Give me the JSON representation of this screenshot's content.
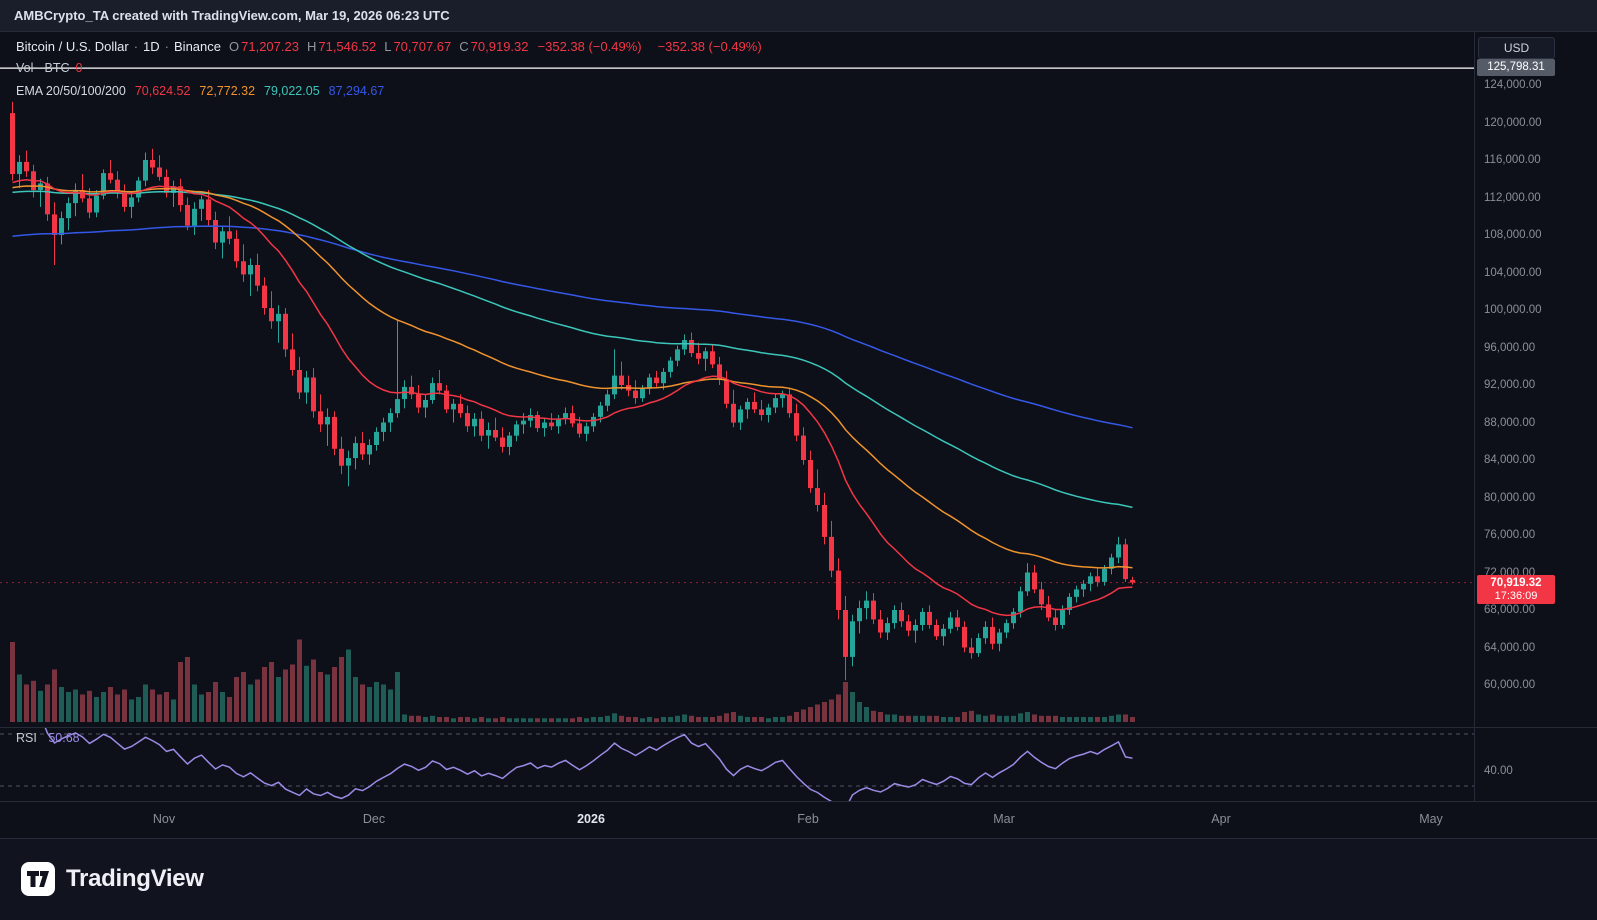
{
  "header": {
    "title": "AMBCrypto_TA created with TradingView.com, Mar 19, 2026 06:23 UTC"
  },
  "toolbar": {
    "currency_label": "USD"
  },
  "legend": {
    "symbol": "Bitcoin / U.S. Dollar",
    "sep": "·",
    "interval": "1D",
    "exchange": "Binance",
    "ohlc": [
      {
        "key": "O",
        "value": "71,207.23"
      },
      {
        "key": "H",
        "value": "71,546.52"
      },
      {
        "key": "L",
        "value": "70,707.67"
      },
      {
        "key": "C",
        "value": "70,919.32"
      }
    ],
    "change": "−352.38 (−0.49%)",
    "change_secondary": "−352.38 (−0.49%)",
    "volume_label": "Vol · BTC",
    "volume_value": "0",
    "ema_label": "EMA 20/50/100/200",
    "ema_values": [
      {
        "text": "70,624.52",
        "color": "#f23645"
      },
      {
        "text": "72,772.32",
        "color": "#f0932e"
      },
      {
        "text": "79,022.05",
        "color": "#3cc6ba"
      },
      {
        "text": "87,294.67",
        "color": "#3558e8"
      }
    ]
  },
  "price_axis": {
    "ticks": [
      {
        "value": 124000,
        "label": "124,000.00"
      },
      {
        "value": 120000,
        "label": "120,000.00"
      },
      {
        "value": 116000,
        "label": "116,000.00"
      },
      {
        "value": 112000,
        "label": "112,000.00"
      },
      {
        "value": 108000,
        "label": "108,000.00"
      },
      {
        "value": 104000,
        "label": "104,000.00"
      },
      {
        "value": 100000,
        "label": "100,000.00"
      },
      {
        "value": 96000,
        "label": "96,000.00"
      },
      {
        "value": 92000,
        "label": "92,000.00"
      },
      {
        "value": 88000,
        "label": "88,000.00"
      },
      {
        "value": 84000,
        "label": "84,000.00"
      },
      {
        "value": 80000,
        "label": "80,000.00"
      },
      {
        "value": 76000,
        "label": "76,000.00"
      },
      {
        "value": 72000,
        "label": "72,000.00"
      },
      {
        "value": 68000,
        "label": "68,000.00"
      },
      {
        "value": 64000,
        "label": "64,000.00"
      },
      {
        "value": 60000,
        "label": "60,000.00"
      }
    ],
    "line_label": "125,798.31",
    "price_badge": {
      "price": "70,919.32",
      "countdown": "17:36:09"
    }
  },
  "time_axis": {
    "labels": [
      {
        "text": "Nov",
        "day": 22,
        "emphasis": false
      },
      {
        "text": "Dec",
        "day": 52,
        "emphasis": false
      },
      {
        "text": "2026",
        "day": 83,
        "emphasis": true
      },
      {
        "text": "Feb",
        "day": 114,
        "emphasis": false
      },
      {
        "text": "Mar",
        "day": 142,
        "emphasis": false
      },
      {
        "text": "Apr",
        "day": 173,
        "emphasis": false
      },
      {
        "text": "May",
        "day": 203,
        "emphasis": false
      }
    ]
  },
  "rsi_pane": {
    "label": "RSI",
    "value": "50.68",
    "axis_label": "40.00",
    "axis_value": 40,
    "upper_band": 70,
    "lower_band": 30,
    "period": 14,
    "color": "#9b8be6"
  },
  "footer": {
    "brand": "TradingView"
  },
  "chart_data": {
    "type": "candlestick",
    "title": "Bitcoin / U.S. Dollar, 1D, Binance",
    "price_unit": "thousand USD per candle value, volume in K BTC",
    "candle_format": [
      "open",
      "high",
      "low",
      "close",
      "volume"
    ],
    "ylim": [
      58500,
      126500
    ],
    "white_line_price": 125798.31,
    "current_price": 70919.32,
    "colors": {
      "up": "#26a69a",
      "down": "#f23645",
      "vol_up": "#1f5c55",
      "vol_down": "#78333e",
      "line": "#ffffff"
    },
    "emas": [
      {
        "period": 20,
        "color": "#f23645",
        "seed": 113.5
      },
      {
        "period": 50,
        "color": "#f0932e",
        "seed": 113.0
      },
      {
        "period": 100,
        "color": "#3cc6ba",
        "seed": 112.5
      },
      {
        "period": 200,
        "color": "#3558e8",
        "seed": 107.8
      }
    ],
    "candles": [
      [
        121.0,
        122.2,
        113.8,
        114.5,
        64
      ],
      [
        114.5,
        116.5,
        113.0,
        115.8,
        38
      ],
      [
        115.8,
        117.0,
        114.2,
        114.8,
        30
      ],
      [
        114.8,
        115.5,
        112.0,
        112.8,
        33
      ],
      [
        112.8,
        114.0,
        111.0,
        113.5,
        25
      ],
      [
        113.5,
        114.2,
        109.5,
        110.2,
        30
      ],
      [
        110.2,
        111.5,
        104.8,
        108.0,
        42
      ],
      [
        108.0,
        110.5,
        107.0,
        109.8,
        28
      ],
      [
        109.8,
        112.0,
        108.5,
        111.4,
        24
      ],
      [
        111.4,
        113.5,
        110.0,
        112.8,
        26
      ],
      [
        112.8,
        114.5,
        111.5,
        111.9,
        22
      ],
      [
        111.9,
        113.0,
        109.8,
        110.4,
        25
      ],
      [
        110.4,
        112.8,
        109.9,
        112.2,
        20
      ],
      [
        112.2,
        115.0,
        111.8,
        114.6,
        24
      ],
      [
        114.6,
        116.0,
        113.5,
        113.9,
        28
      ],
      [
        113.9,
        114.8,
        111.9,
        112.5,
        22
      ],
      [
        112.5,
        113.4,
        110.5,
        111.0,
        26
      ],
      [
        111.0,
        112.5,
        109.8,
        112.0,
        18
      ],
      [
        112.0,
        114.2,
        111.5,
        113.8,
        20
      ],
      [
        113.8,
        116.8,
        113.2,
        116.0,
        30
      ],
      [
        116.0,
        117.2,
        114.5,
        115.2,
        26
      ],
      [
        115.2,
        116.5,
        113.8,
        114.2,
        22
      ],
      [
        114.2,
        115.0,
        112.0,
        112.5,
        24
      ],
      [
        112.5,
        113.8,
        111.0,
        113.2,
        18
      ],
      [
        113.2,
        114.0,
        110.5,
        111.2,
        48
      ],
      [
        111.2,
        112.0,
        108.5,
        109.0,
        52
      ],
      [
        109.0,
        111.5,
        108.0,
        110.8,
        30
      ],
      [
        110.8,
        112.2,
        109.5,
        111.8,
        22
      ],
      [
        111.8,
        112.8,
        109.0,
        109.6,
        24
      ],
      [
        109.6,
        110.5,
        106.5,
        107.2,
        32
      ],
      [
        107.2,
        109.0,
        105.5,
        108.4,
        24
      ],
      [
        108.4,
        110.0,
        107.0,
        107.6,
        20
      ],
      [
        107.6,
        108.5,
        104.5,
        105.2,
        36
      ],
      [
        105.2,
        107.0,
        103.0,
        103.8,
        40
      ],
      [
        103.8,
        105.5,
        101.5,
        104.8,
        30
      ],
      [
        104.8,
        106.0,
        102.0,
        102.6,
        34
      ],
      [
        102.6,
        103.5,
        99.5,
        100.2,
        44
      ],
      [
        100.2,
        102.0,
        98.0,
        98.8,
        48
      ],
      [
        98.8,
        100.5,
        96.5,
        99.6,
        36
      ],
      [
        99.6,
        100.2,
        95.0,
        95.8,
        42
      ],
      [
        95.8,
        97.5,
        93.0,
        93.6,
        46
      ],
      [
        93.6,
        95.0,
        90.5,
        91.2,
        66
      ],
      [
        91.2,
        93.5,
        90.0,
        92.8,
        45
      ],
      [
        92.8,
        93.8,
        88.5,
        89.2,
        50
      ],
      [
        89.2,
        91.0,
        87.0,
        87.8,
        40
      ],
      [
        87.8,
        89.5,
        85.5,
        88.6,
        38
      ],
      [
        88.6,
        89.2,
        84.5,
        85.2,
        44
      ],
      [
        85.2,
        86.5,
        82.5,
        83.4,
        52
      ],
      [
        83.4,
        85.0,
        81.2,
        84.2,
        58
      ],
      [
        84.2,
        86.5,
        83.0,
        85.8,
        36
      ],
      [
        85.8,
        87.0,
        84.0,
        84.6,
        30
      ],
      [
        84.6,
        86.2,
        83.5,
        85.6,
        28
      ],
      [
        85.6,
        87.5,
        85.0,
        87.0,
        32
      ],
      [
        87.0,
        88.5,
        86.0,
        88.0,
        30
      ],
      [
        88.0,
        89.5,
        87.0,
        89.0,
        26
      ],
      [
        89.0,
        98.9,
        88.5,
        90.5,
        40
      ],
      [
        90.5,
        92.5,
        89.5,
        91.8,
        6
      ],
      [
        91.8,
        93.0,
        90.5,
        91.0,
        5
      ],
      [
        91.0,
        92.0,
        89.0,
        89.6,
        5
      ],
      [
        89.6,
        91.0,
        88.5,
        90.4,
        4
      ],
      [
        90.4,
        92.8,
        90.0,
        92.2,
        5
      ],
      [
        92.2,
        93.6,
        91.0,
        91.4,
        4
      ],
      [
        91.4,
        92.0,
        89.0,
        89.4,
        4
      ],
      [
        89.4,
        90.5,
        88.0,
        90.0,
        3
      ],
      [
        90.0,
        91.0,
        88.5,
        89.0,
        4
      ],
      [
        89.0,
        89.8,
        87.0,
        87.6,
        4
      ],
      [
        87.6,
        89.0,
        86.5,
        88.4,
        3
      ],
      [
        88.4,
        89.2,
        86.0,
        86.6,
        4
      ],
      [
        86.6,
        88.0,
        85.2,
        87.2,
        3
      ],
      [
        87.2,
        88.5,
        86.0,
        86.4,
        3
      ],
      [
        86.4,
        87.5,
        84.8,
        85.4,
        4
      ],
      [
        85.4,
        87.0,
        84.5,
        86.6,
        3
      ],
      [
        86.6,
        88.2,
        86.0,
        87.8,
        3
      ],
      [
        87.8,
        89.0,
        86.8,
        88.2,
        3
      ],
      [
        88.2,
        89.5,
        87.5,
        88.8,
        3
      ],
      [
        88.8,
        89.2,
        87.0,
        87.4,
        3
      ],
      [
        87.4,
        88.5,
        86.5,
        88.0,
        3
      ],
      [
        88.0,
        89.0,
        87.2,
        87.6,
        3
      ],
      [
        87.6,
        88.8,
        86.8,
        88.4,
        3
      ],
      [
        88.4,
        89.6,
        87.8,
        89.0,
        3
      ],
      [
        89.0,
        89.8,
        87.5,
        87.9,
        3
      ],
      [
        87.9,
        88.6,
        86.4,
        86.8,
        4
      ],
      [
        86.8,
        88.0,
        86.0,
        87.6,
        3
      ],
      [
        87.6,
        89.0,
        87.0,
        88.6,
        4
      ],
      [
        88.6,
        90.2,
        88.0,
        89.8,
        4
      ],
      [
        89.8,
        91.5,
        89.2,
        91.0,
        5
      ],
      [
        91.0,
        95.8,
        90.5,
        93.0,
        7
      ],
      [
        93.0,
        94.5,
        91.5,
        92.0,
        5
      ],
      [
        92.0,
        93.0,
        90.8,
        91.4,
        4
      ],
      [
        91.4,
        92.5,
        90.0,
        90.6,
        4
      ],
      [
        90.6,
        92.0,
        90.2,
        91.6,
        3
      ],
      [
        91.6,
        93.2,
        91.0,
        92.8,
        4
      ],
      [
        92.8,
        93.5,
        91.8,
        92.2,
        3
      ],
      [
        92.2,
        93.8,
        91.5,
        93.4,
        4
      ],
      [
        93.4,
        95.0,
        92.8,
        94.6,
        4
      ],
      [
        94.6,
        96.2,
        94.0,
        95.8,
        5
      ],
      [
        95.8,
        97.4,
        95.2,
        96.8,
        6
      ],
      [
        96.8,
        97.6,
        95.0,
        95.4,
        5
      ],
      [
        95.4,
        96.5,
        94.2,
        94.8,
        4
      ],
      [
        94.8,
        96.0,
        93.5,
        95.6,
        4
      ],
      [
        95.6,
        96.3,
        93.8,
        94.2,
        4
      ],
      [
        94.2,
        95.0,
        92.0,
        92.6,
        5
      ],
      [
        92.6,
        93.5,
        89.5,
        90.0,
        7
      ],
      [
        90.0,
        91.5,
        87.5,
        88.0,
        8
      ],
      [
        88.0,
        89.8,
        87.2,
        89.4,
        5
      ],
      [
        89.4,
        90.6,
        88.4,
        90.2,
        4
      ],
      [
        90.2,
        91.2,
        89.0,
        89.4,
        4
      ],
      [
        89.4,
        90.4,
        88.2,
        88.8,
        4
      ],
      [
        88.8,
        90.0,
        88.0,
        89.6,
        3
      ],
      [
        89.6,
        91.0,
        89.0,
        90.6,
        4
      ],
      [
        90.6,
        91.4,
        89.6,
        91.0,
        4
      ],
      [
        91.0,
        91.6,
        88.5,
        89.0,
        5
      ],
      [
        89.0,
        90.0,
        86.0,
        86.6,
        8
      ],
      [
        86.6,
        87.5,
        83.5,
        84.0,
        10
      ],
      [
        84.0,
        85.0,
        80.5,
        81.0,
        12
      ],
      [
        81.0,
        83.0,
        78.5,
        79.2,
        14
      ],
      [
        79.2,
        80.5,
        75.0,
        75.8,
        16
      ],
      [
        75.8,
        77.5,
        71.5,
        72.2,
        18
      ],
      [
        72.2,
        73.5,
        67.0,
        68.0,
        22
      ],
      [
        68.0,
        69.5,
        60.5,
        63.0,
        32
      ],
      [
        63.0,
        67.5,
        62.0,
        66.8,
        24
      ],
      [
        66.8,
        69.0,
        65.5,
        68.2,
        16
      ],
      [
        68.2,
        70.0,
        67.0,
        69.0,
        12
      ],
      [
        69.0,
        69.8,
        66.5,
        67.0,
        9
      ],
      [
        67.0,
        68.0,
        65.0,
        65.6,
        8
      ],
      [
        65.6,
        67.2,
        64.8,
        66.6,
        6
      ],
      [
        66.6,
        68.5,
        66.0,
        68.0,
        6
      ],
      [
        68.0,
        68.8,
        66.2,
        66.8,
        5
      ],
      [
        66.8,
        67.5,
        65.2,
        65.8,
        5
      ],
      [
        65.8,
        67.0,
        64.5,
        66.4,
        5
      ],
      [
        66.4,
        68.2,
        65.8,
        67.8,
        5
      ],
      [
        67.8,
        68.5,
        66.0,
        66.4,
        5
      ],
      [
        66.4,
        67.0,
        64.8,
        65.2,
        5
      ],
      [
        65.2,
        66.5,
        64.2,
        66.0,
        4
      ],
      [
        66.0,
        67.8,
        65.5,
        67.2,
        4
      ],
      [
        67.2,
        68.0,
        65.8,
        66.2,
        4
      ],
      [
        66.2,
        66.8,
        63.5,
        64.0,
        8
      ],
      [
        64.0,
        65.0,
        62.8,
        63.4,
        9
      ],
      [
        63.4,
        65.5,
        63.0,
        65.0,
        6
      ],
      [
        65.0,
        66.8,
        64.4,
        66.2,
        5
      ],
      [
        66.2,
        67.2,
        63.8,
        64.4,
        6
      ],
      [
        64.4,
        66.0,
        63.6,
        65.6,
        5
      ],
      [
        65.6,
        67.0,
        65.0,
        66.6,
        5
      ],
      [
        66.6,
        68.2,
        66.0,
        67.8,
        5
      ],
      [
        67.8,
        70.5,
        67.2,
        70.0,
        7
      ],
      [
        70.0,
        73.0,
        69.5,
        72.0,
        8
      ],
      [
        72.0,
        72.8,
        69.8,
        70.2,
        6
      ],
      [
        70.2,
        71.0,
        68.0,
        68.6,
        5
      ],
      [
        68.6,
        69.5,
        66.8,
        67.2,
        5
      ],
      [
        67.2,
        68.0,
        65.8,
        66.4,
        5
      ],
      [
        66.4,
        68.5,
        66.0,
        68.0,
        4
      ],
      [
        68.0,
        69.8,
        67.5,
        69.4,
        4
      ],
      [
        69.4,
        70.6,
        68.8,
        70.2,
        4
      ],
      [
        70.2,
        71.2,
        69.4,
        70.8,
        4
      ],
      [
        70.8,
        72.0,
        70.0,
        71.6,
        4
      ],
      [
        71.6,
        72.5,
        70.5,
        71.0,
        4
      ],
      [
        71.0,
        72.8,
        70.6,
        72.4,
        4
      ],
      [
        72.4,
        74.0,
        71.8,
        73.6,
        5
      ],
      [
        73.6,
        75.8,
        73.0,
        75.0,
        6
      ],
      [
        75.0,
        75.6,
        71.0,
        71.3,
        6
      ],
      [
        71.207,
        71.546,
        70.708,
        70.919,
        4
      ]
    ]
  }
}
